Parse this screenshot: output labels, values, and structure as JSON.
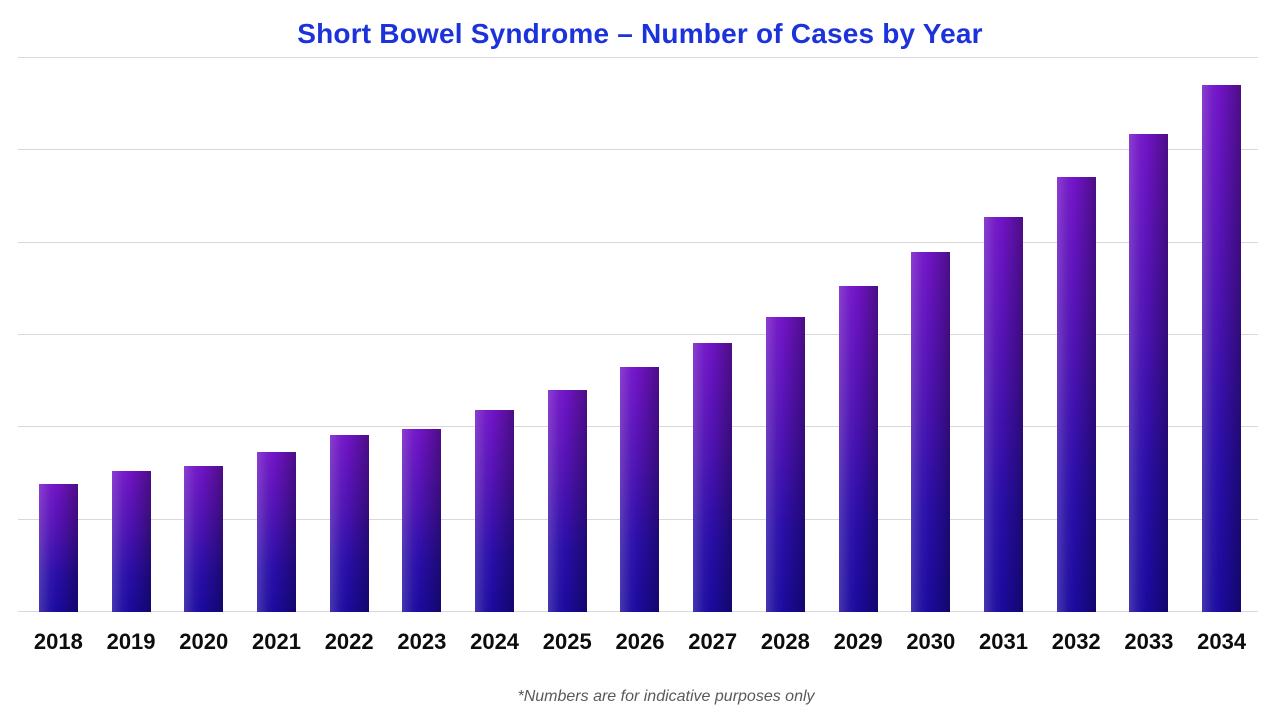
{
  "page": {
    "background": "#ffffff"
  },
  "header": {
    "title": "Short Bowel Syndrome – Number of Cases by Year",
    "title_color": "#1c33dc"
  },
  "footnote": {
    "text": "*Numbers are for indicative purposes only",
    "color": "#595959"
  },
  "chart_data": {
    "type": "bar",
    "title": "Short Bowel Syndrome – Number of Cases by Year",
    "categories": [
      "2018",
      "2019",
      "2020",
      "2021",
      "2022",
      "2023",
      "2024",
      "2025",
      "2026",
      "2027",
      "2028",
      "2029",
      "2030",
      "2031",
      "2032",
      "2033",
      "2034"
    ],
    "values": [
      1.39,
      1.53,
      1.58,
      1.73,
      1.92,
      1.98,
      2.19,
      2.4,
      2.65,
      2.91,
      3.2,
      3.53,
      3.9,
      4.28,
      4.71,
      5.18,
      5.71
    ],
    "xlabel": "",
    "ylabel": "",
    "ylim": [
      0,
      6
    ],
    "grid_interval": 1,
    "grid": true,
    "legend": false,
    "y_axis_labels_visible": false,
    "annotation": "*Numbers are for indicative purposes only",
    "colors": {
      "gridline": "#d9d9d9",
      "x_tick": "#0d0d0d",
      "bar_gradient_top": "#7114c6",
      "bar_gradient_upper_mid": "#4e12b2",
      "bar_gradient_lower_mid": "#2a0ea8",
      "bar_gradient_bottom": "#1b0a9e",
      "bar_sheen_left": "rgba(255,255,255,0.18)",
      "bar_shade_right": "rgba(0,0,0,0.32)"
    }
  }
}
